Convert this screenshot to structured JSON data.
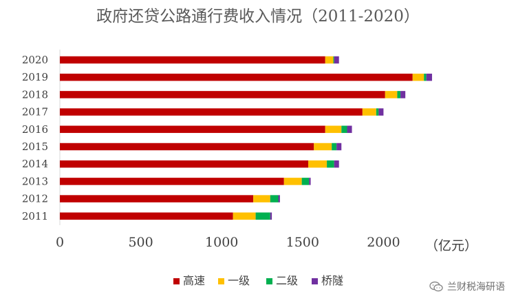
{
  "chart_data": {
    "type": "bar",
    "orientation": "horizontal",
    "stacked": true,
    "title": "政府还贷公路通行费收入情况（2011-2020）",
    "xlabel": "",
    "ylabel": "",
    "unit_label": "（亿元）",
    "categories": [
      "2011",
      "2012",
      "2013",
      "2014",
      "2015",
      "2016",
      "2017",
      "2018",
      "2019",
      "2020"
    ],
    "series": [
      {
        "name": "高速",
        "color": "#c00000",
        "values": [
          1070,
          1195,
          1385,
          1535,
          1570,
          1640,
          1870,
          2010,
          2180,
          1640
        ]
      },
      {
        "name": "一级",
        "color": "#ffc000",
        "values": [
          140,
          105,
          110,
          115,
          110,
          100,
          85,
          75,
          70,
          50
        ]
      },
      {
        "name": "二级",
        "color": "#00b050",
        "values": [
          90,
          50,
          45,
          45,
          30,
          35,
          15,
          20,
          15,
          5
        ]
      },
      {
        "name": "桥隧",
        "color": "#7030a0",
        "values": [
          10,
          10,
          10,
          30,
          30,
          30,
          30,
          30,
          35,
          30
        ]
      }
    ],
    "xlim": [
      0,
      2500
    ],
    "xticks": [
      0,
      500,
      1000,
      1500,
      2000
    ],
    "grid": false,
    "legend_position": "bottom"
  },
  "watermark": {
    "text": "兰财税海研语",
    "icon": "wechat-icon"
  }
}
